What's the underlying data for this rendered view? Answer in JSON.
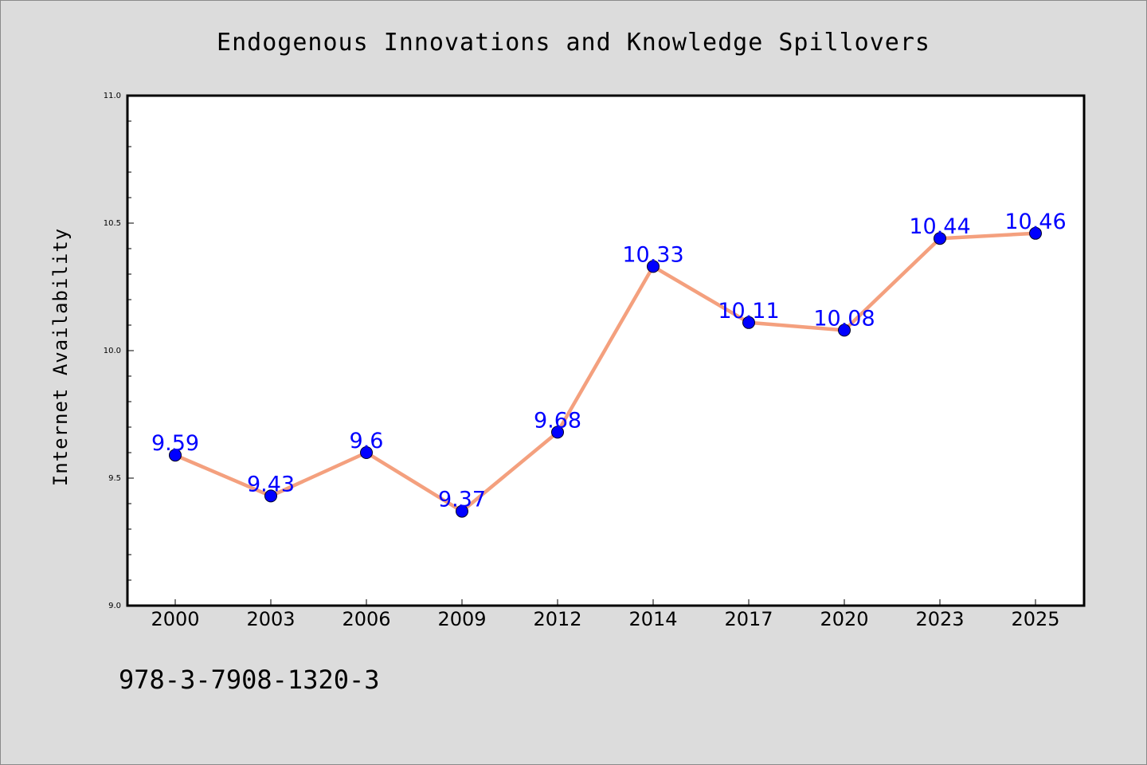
{
  "chart_data": {
    "type": "line",
    "title": "Endogenous Innovations and Knowledge Spillovers",
    "xlabel": "",
    "ylabel": "Internet Availability",
    "categories": [
      "2000",
      "2003",
      "2006",
      "2009",
      "2012",
      "2014",
      "2017",
      "2020",
      "2023",
      "2025"
    ],
    "series": [
      {
        "values": [
          9.59,
          9.43,
          9.6,
          9.37,
          9.68,
          10.33,
          10.11,
          10.08,
          10.44,
          10.46
        ],
        "labels": [
          "9.59",
          "9.43",
          "9.6",
          "9.37",
          "9.68",
          "10.33",
          "10.11",
          "10.08",
          "10.44",
          "10.46"
        ]
      }
    ],
    "ylim": [
      9.0,
      11.0
    ],
    "y_ticks": [
      "9.0",
      "9.5",
      "10.0",
      "10.5",
      "11.0"
    ],
    "grid": false,
    "line_color": "#f4a07e",
    "marker_color": "#0000ff",
    "label_color": "#0000ff"
  },
  "footer": {
    "isbn": "978-3-7908-1320-3"
  }
}
